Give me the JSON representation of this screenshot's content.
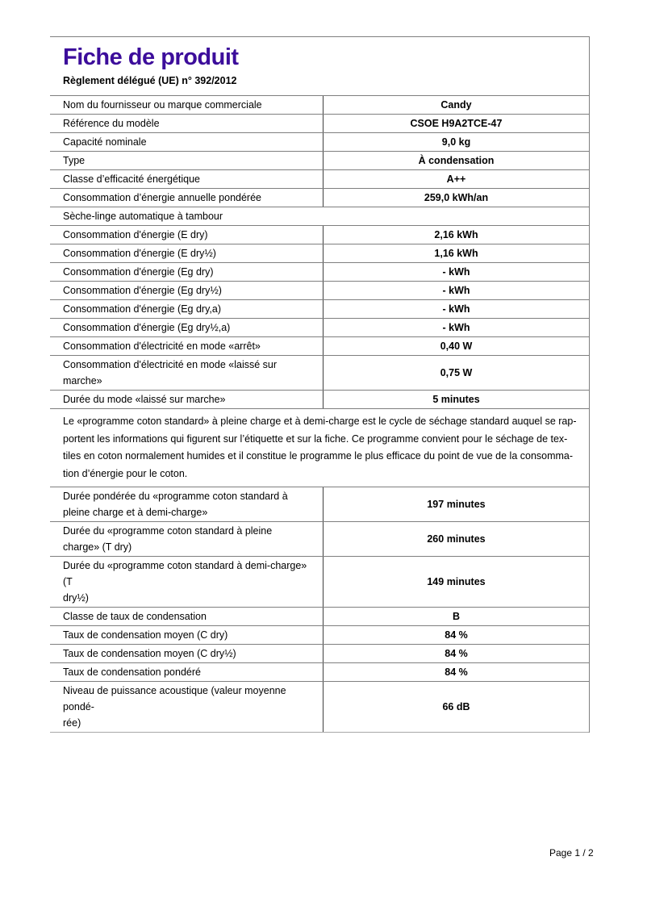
{
  "page": {
    "title": "Fiche de produit",
    "subtitle": "Règlement délégué (UE) n° 392/2012",
    "footer": "Page 1 / 2",
    "title_color": "#3c0d9b"
  },
  "table": {
    "rows": [
      {
        "type": "kv",
        "label": "Nom du fournisseur ou marque commerciale",
        "value": "Candy"
      },
      {
        "type": "kv",
        "label": "Référence du modèle",
        "value": "CSOE H9A2TCE-47"
      },
      {
        "type": "kv",
        "label": "Capacité nominale",
        "value": "9,0 kg"
      },
      {
        "type": "kv",
        "label": "Type",
        "value": "À condensation"
      },
      {
        "type": "kv",
        "label": "Classe d’efficacité énergétique",
        "value": "A++"
      },
      {
        "type": "kv",
        "label": "Consommation d’énergie annuelle pondérée",
        "value": "259,0 kWh/an"
      },
      {
        "type": "section",
        "label": "Sèche-linge automatique à tambour"
      },
      {
        "type": "kv",
        "label": "Consommation d'énergie (E dry)",
        "value": "2,16 kWh"
      },
      {
        "type": "kv",
        "label": "Consommation d'énergie (E dry½)",
        "value": "1,16 kWh"
      },
      {
        "type": "kv",
        "label": "Consommation d'énergie (Eg dry)",
        "value": "- kWh"
      },
      {
        "type": "kv",
        "label": "Consommation d'énergie (Eg dry½)",
        "value": "- kWh"
      },
      {
        "type": "kv",
        "label": "Consommation d'énergie (Eg dry,a)",
        "value": "- kWh"
      },
      {
        "type": "kv",
        "label": "Consommation d'énergie (Eg dry½,a)",
        "value": "- kWh"
      },
      {
        "type": "kv",
        "label": "Consommation d'électricité en mode «arrêt»",
        "value": "0,40 W"
      },
      {
        "type": "kv",
        "label": "Consommation d'électricité en mode «laissé sur\nmarche»",
        "value": "0,75 W"
      },
      {
        "type": "kv",
        "label": "Durée du mode «laissé sur marche»",
        "value": "5 minutes"
      },
      {
        "type": "paragraph",
        "label": "Le «programme coton standard» à pleine charge et à demi-charge est le cycle de séchage standard auquel se rap-\nportent les informations qui figurent sur l’étiquette et sur la fiche. Ce programme convient pour le séchage de tex-\ntiles en coton normalement humides et il constitue le programme le plus efficace du point de vue de la consomma-\ntion d’énergie pour le coton."
      },
      {
        "type": "kv",
        "label": "Durée pondérée du «programme coton standard à\npleine charge et à demi-charge»",
        "value": "197 minutes"
      },
      {
        "type": "kv",
        "label": "Durée du «programme coton standard à pleine\ncharge» (T dry)",
        "value": "260 minutes"
      },
      {
        "type": "kv",
        "label": "Durée du «programme coton standard à demi-charge» (T\ndry½)",
        "value": "149 minutes"
      },
      {
        "type": "kv",
        "label": "Classe de taux de condensation",
        "value": "B"
      },
      {
        "type": "kv",
        "label": "Taux de condensation moyen (C dry)",
        "value": "84 %"
      },
      {
        "type": "kv",
        "label": "Taux de condensation moyen (C dry½)",
        "value": "84 %"
      },
      {
        "type": "kv",
        "label": "Taux de condensation pondéré",
        "value": "84 %"
      },
      {
        "type": "kv",
        "label": "Niveau de puissance acoustique (valeur moyenne pondé-\nrée)",
        "value": "66 dB"
      }
    ]
  }
}
